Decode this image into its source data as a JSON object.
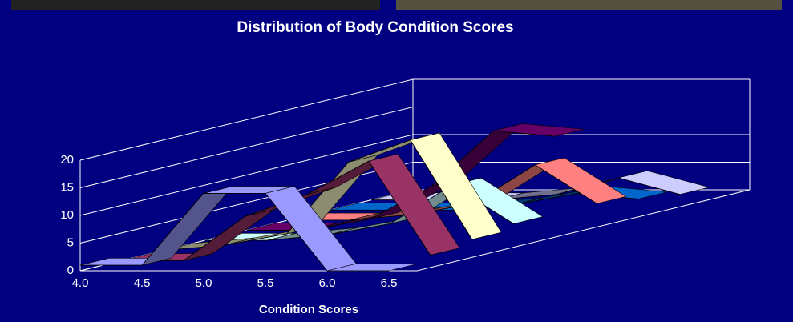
{
  "chart_data": {
    "type": "ribbon3d",
    "title": "Distribution of Body Condition Scores",
    "x_label": "Condition Scores",
    "categories": [
      "4.0",
      "4.5",
      "5.0",
      "5.5",
      "6.0",
      "6.5"
    ],
    "ylim": [
      0,
      20
    ],
    "yticks": [
      0,
      5,
      10,
      15,
      20
    ],
    "grid": true,
    "series": [
      {
        "color": "#9999ff",
        "values": [
          1,
          1,
          14,
          14,
          0,
          0
        ]
      },
      {
        "color": "#993366",
        "values": [
          0,
          0,
          8,
          12,
          18,
          1
        ]
      },
      {
        "color": "#ffffcc",
        "values": [
          0,
          1,
          3,
          16,
          20,
          2
        ]
      },
      {
        "color": "#ccffff",
        "values": [
          0,
          0,
          1,
          3,
          10,
          3
        ]
      },
      {
        "color": "#660066",
        "values": [
          0,
          0,
          2,
          8,
          18,
          17
        ]
      },
      {
        "color": "#ff8080",
        "values": [
          0,
          0,
          1,
          3,
          10,
          3
        ]
      },
      {
        "color": "#0066cc",
        "values": [
          0,
          0,
          0,
          1,
          3,
          2
        ]
      },
      {
        "color": "#ccccff",
        "values": [
          0,
          0,
          0,
          1,
          4,
          1
        ]
      }
    ]
  }
}
